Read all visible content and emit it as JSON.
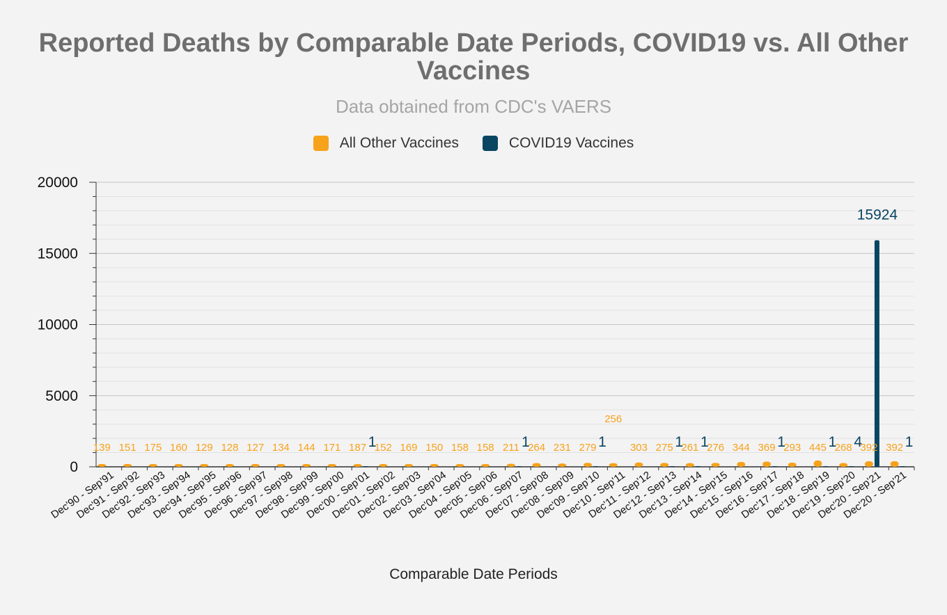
{
  "colors": {
    "other": "#f7a21b",
    "covid": "#0a4562",
    "tick_color": "#f7a21b"
  },
  "chart_data": {
    "type": "bar",
    "title": "Reported Deaths by Comparable Date Periods, COVID19 vs. All Other Vaccines",
    "subtitle": "Data obtained from CDC's VAERS",
    "xlabel": "Comparable Date Periods",
    "ylabel": "",
    "ylim": [
      0,
      20000
    ],
    "yticks": [
      "0",
      "5000",
      "10000",
      "15000",
      "20000"
    ],
    "grid": true,
    "legend_position": "top",
    "categories": [
      "Dec'90 - Sep'91",
      "Dec'91 - Sep'92",
      "Dec'92 - Sep'93",
      "Dec'93 - Sep'94",
      "Dec'94 - Sep'95",
      "Dec'95 - Sep'96",
      "Dec'96 - Sep'97",
      "Dec'97 - Sep'98",
      "Dec'98 - Sep'99",
      "Dec'99 - Sep'00",
      "Dec'00 - Sep'01",
      "Dec'01 - Sep'02",
      "Dec'02 - Sep'03",
      "Dec'03 - Sep'04",
      "Dec'04 - Sep'05",
      "Dec'05 - Sep'06",
      "Dec'06 - Sep'07",
      "Dec'07 - Sep'08",
      "Dec'08 - Sep'09",
      "Dec'09 - Sep'10",
      "Dec'10 - Sep'11",
      "Dec'11 - Sep'12",
      "Dec'12 - Sep'13",
      "Dec'13 - Sep'14",
      "Dec'14 - Sep'15",
      "Dec'15 - Sep'16",
      "Dec'16 - Sep'17",
      "Dec'17 - Sep'18",
      "Dec'18 - Sep'19",
      "Dec'19 - Sep'20",
      "Dec'20 - Sep'21",
      "Dec'20 - Sep'21"
    ],
    "series": [
      {
        "name": "All Other Vaccines",
        "values": [
          139,
          151,
          175,
          160,
          129,
          128,
          127,
          134,
          144,
          171,
          187,
          152,
          169,
          150,
          158,
          158,
          211,
          264,
          231,
          279,
          256,
          303,
          275,
          261,
          276,
          344,
          369,
          293,
          445,
          268,
          392,
          392
        ],
        "labels": [
          "139",
          "151",
          "175",
          "160",
          "129",
          "128",
          "127",
          "134",
          "144",
          "171",
          "187",
          "152",
          "169",
          "150",
          "158",
          "158",
          "211",
          "264",
          "231",
          "279",
          "256",
          "303",
          "275",
          "261",
          "276",
          "344",
          "369",
          "293",
          "445",
          "268",
          "392",
          "392"
        ]
      },
      {
        "name": "COVID19 Vaccines",
        "values": [
          0,
          0,
          0,
          0,
          0,
          0,
          0,
          0,
          0,
          0,
          1,
          0,
          0,
          0,
          0,
          0,
          1,
          0,
          0,
          1,
          0,
          0,
          1,
          1,
          0,
          0,
          1,
          0,
          1,
          4,
          15924,
          1
        ],
        "labels": [
          "",
          "",
          "",
          "",
          "",
          "",
          "",
          "",
          "",
          "",
          "1",
          "",
          "",
          "",
          "",
          "",
          "1",
          "",
          "",
          "1",
          "",
          "",
          "1",
          "1",
          "",
          "",
          "1",
          "",
          "1",
          "4",
          "15924",
          "1"
        ]
      }
    ]
  }
}
